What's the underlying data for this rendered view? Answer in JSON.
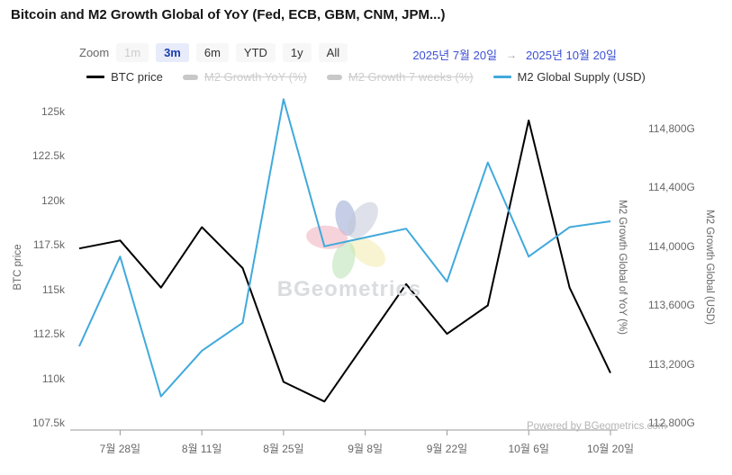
{
  "header": {
    "title": "Bitcoin and M2 Growth Global of YoY (Fed, ECB, GBM, CNM, JPM...)"
  },
  "toolbar": {
    "zoom_label": "Zoom",
    "ranges": [
      {
        "label": "1m",
        "state": "disabled"
      },
      {
        "label": "3m",
        "state": "selected"
      },
      {
        "label": "6m",
        "state": "normal"
      },
      {
        "label": "YTD",
        "state": "normal"
      },
      {
        "label": "1y",
        "state": "normal"
      },
      {
        "label": "All",
        "state": "normal"
      }
    ],
    "date_from": "2025년 7월 20일",
    "date_arrow": "→",
    "date_to": "2025년 10월 20일"
  },
  "legend": {
    "items": [
      {
        "label": "BTC price",
        "color": "#000000",
        "enabled": true,
        "marker": "line"
      },
      {
        "label": "M2 Growth YoY (%)",
        "color": "#c8c8c8",
        "enabled": false,
        "marker": "thick"
      },
      {
        "label": "M2 Growth 7 weeks (%)",
        "color": "#c8c8c8",
        "enabled": false,
        "marker": "thick"
      },
      {
        "label": "M2 Global Supply (USD)",
        "color": "#41a9dc",
        "enabled": true,
        "marker": "line"
      }
    ]
  },
  "chart_data": {
    "type": "line",
    "grid": false,
    "legend_position": "top",
    "x": [
      "2025-07-21",
      "2025-07-28",
      "2025-08-04",
      "2025-08-11",
      "2025-08-18",
      "2025-08-25",
      "2025-09-01",
      "2025-09-08",
      "2025-09-15",
      "2025-09-22",
      "2025-09-29",
      "2025-10-06",
      "2025-10-13",
      "2025-10-20"
    ],
    "series": [
      {
        "name": "BTC price",
        "axis": "left",
        "color": "#000000",
        "values": [
          117300,
          117750,
          115100,
          118500,
          116200,
          109800,
          108700,
          112000,
          115300,
          112500,
          114100,
          124500,
          115100,
          110300
        ]
      },
      {
        "name": "M2 Global Supply (USD)",
        "axis": "right",
        "color": "#41a9dc",
        "values": [
          113320,
          113930,
          112980,
          113290,
          113480,
          115000,
          114000,
          114060,
          114120,
          113760,
          114570,
          113930,
          114130,
          114170
        ]
      }
    ],
    "axes": {
      "left": {
        "title": "BTC price",
        "min": 107500,
        "max": 125000,
        "tick_labels": [
          "125k",
          "122.5k",
          "120k",
          "117.5k",
          "115k",
          "112.5k",
          "110k",
          "107.5k"
        ],
        "tick_values": [
          125000,
          122500,
          120000,
          117500,
          115000,
          112500,
          110000,
          107500
        ]
      },
      "right": {
        "title": "M2 Growth Global (USD)",
        "min": 112800,
        "max": 114800,
        "tick_labels": [
          "114,800G",
          "114,400G",
          "114,000G",
          "113,600G",
          "113,200G",
          "112,800G"
        ],
        "tick_values": [
          114800,
          114400,
          114000,
          113600,
          113200,
          112800
        ]
      },
      "right_hidden": {
        "title": "M2 Growth Global of YoY (%)"
      }
    },
    "xticks": [
      {
        "label": "7월 28일",
        "index": 1
      },
      {
        "label": "8월 11일",
        "index": 3
      },
      {
        "label": "8월 25일",
        "index": 5
      },
      {
        "label": "9월 8일",
        "index": 7
      },
      {
        "label": "9월 22일",
        "index": 9
      },
      {
        "label": "10월 6일",
        "index": 11
      },
      {
        "label": "10월 20일",
        "index": 13
      }
    ]
  },
  "watermark": {
    "text": "BGeometrics"
  },
  "footer": {
    "powered_by": "Powered by BGeometrics.com"
  }
}
